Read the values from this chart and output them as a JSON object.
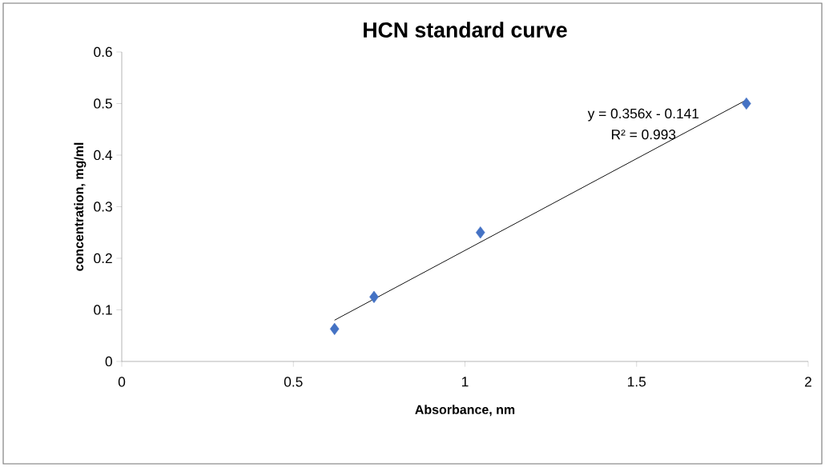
{
  "chart_data": {
    "type": "scatter",
    "title": "HCN standard curve",
    "xlabel": "Absorbance, nm",
    "ylabel": "concentration, mg/ml",
    "xlim": [
      0,
      2
    ],
    "xticks": [
      0,
      0.5,
      1,
      1.5,
      2
    ],
    "ylim": [
      0,
      0.6
    ],
    "yticks": [
      0,
      0.1,
      0.2,
      0.3,
      0.4,
      0.5,
      0.6
    ],
    "marker": "diamond",
    "grid": false,
    "series": [
      {
        "color": "#4472c4",
        "x": [
          0.62,
          0.735,
          1.045,
          1.82
        ],
        "values": [
          0.063,
          0.125,
          0.25,
          0.5
        ]
      },
      {
        "type": "line",
        "marker": "none",
        "color": "#000000",
        "x": [
          0.62,
          1.82
        ],
        "values": [
          0.08,
          0.507
        ]
      }
    ],
    "annotations": [
      "y = 0.356x - 0.141",
      "R² = 0.993"
    ]
  }
}
